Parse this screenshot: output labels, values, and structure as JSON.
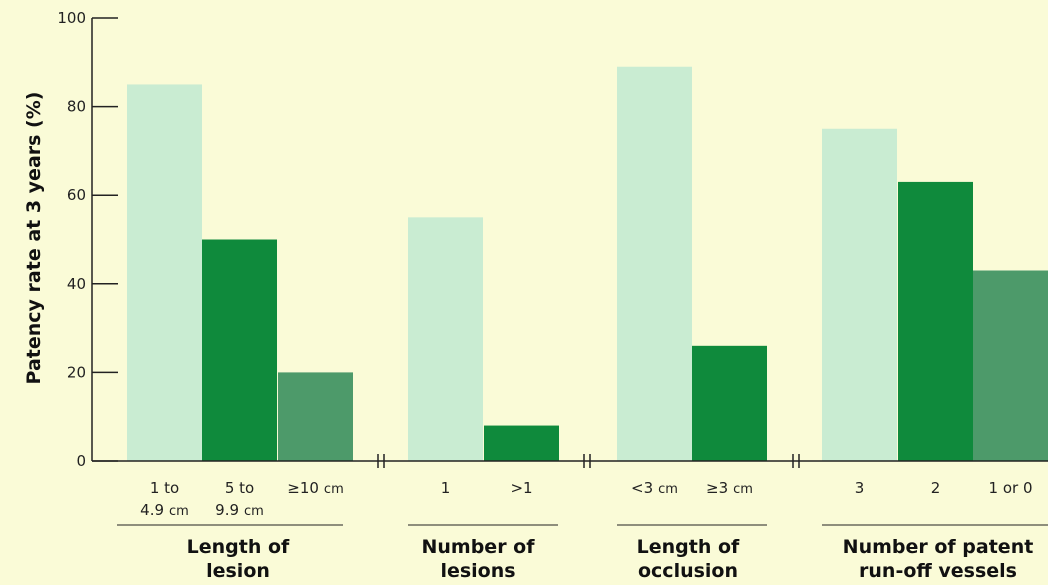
{
  "chart_data": {
    "type": "bar",
    "title": "",
    "xlabel": "",
    "ylabel": "Patency rate at 3 years (%)",
    "ylim": [
      0,
      100
    ],
    "yticks": [
      "0",
      "20",
      "40",
      "60",
      "80",
      "100"
    ],
    "grid": false,
    "legend": "none",
    "colors": {
      "background": "#fafbd7",
      "light": "#c9ecd2",
      "dark": "#0f8a3c",
      "medium": "#4d9a6a",
      "axis": "#222222"
    },
    "groups": [
      {
        "label_lines": [
          "Length of",
          "lesion"
        ],
        "bars": [
          {
            "label_lines": [
              [
                "1 to",
                ""
              ],
              [
                "4.9",
                "cm"
              ]
            ],
            "value": 85,
            "shade": "light"
          },
          {
            "label_lines": [
              [
                "5 to",
                ""
              ],
              [
                "9.9",
                "cm"
              ]
            ],
            "value": 50,
            "shade": "dark"
          },
          {
            "label_lines": [
              [
                "≥10",
                "cm"
              ]
            ],
            "value": 20,
            "shade": "medium"
          }
        ]
      },
      {
        "label_lines": [
          "Number of",
          "lesions"
        ],
        "bars": [
          {
            "label_lines": [
              [
                "1",
                ""
              ]
            ],
            "value": 55,
            "shade": "light"
          },
          {
            "label_lines": [
              [
                ">1",
                ""
              ]
            ],
            "value": 8,
            "shade": "dark"
          }
        ]
      },
      {
        "label_lines": [
          "Length of",
          "occlusion"
        ],
        "bars": [
          {
            "label_lines": [
              [
                "<3",
                "cm"
              ]
            ],
            "value": 89,
            "shade": "light"
          },
          {
            "label_lines": [
              [
                "≥3",
                "cm"
              ]
            ],
            "value": 26,
            "shade": "dark"
          }
        ]
      },
      {
        "label_lines": [
          "Number of patent",
          "run-off vessels"
        ],
        "bars": [
          {
            "label_lines": [
              [
                "3",
                ""
              ]
            ],
            "value": 75,
            "shade": "light"
          },
          {
            "label_lines": [
              [
                "2",
                ""
              ]
            ],
            "value": 63,
            "shade": "dark"
          },
          {
            "label_lines": [
              [
                "1 or 0",
                ""
              ]
            ],
            "value": 43,
            "shade": "medium"
          }
        ]
      }
    ]
  }
}
